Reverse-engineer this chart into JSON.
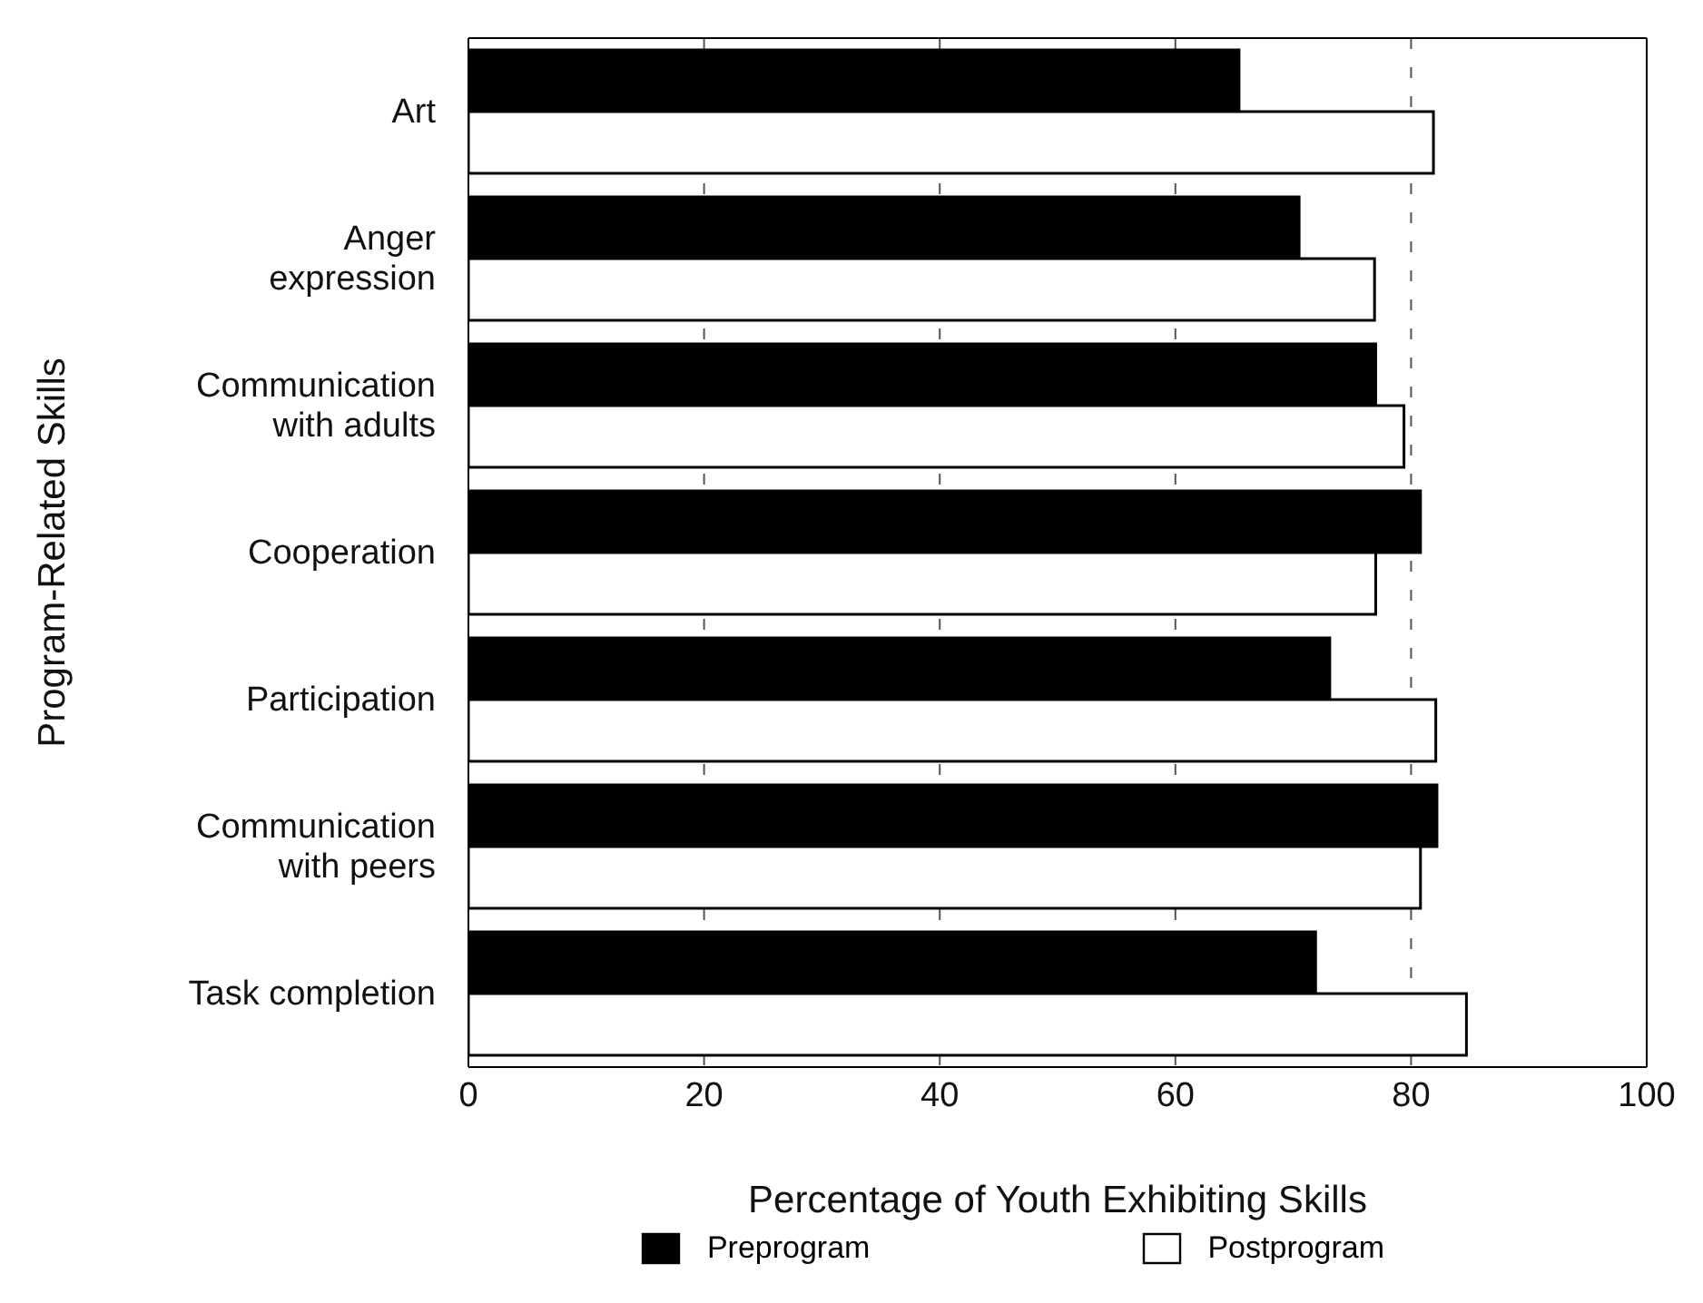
{
  "chart_data": {
    "type": "bar",
    "orientation": "horizontal",
    "xlabel": "Percentage of Youth Exhibiting Skills",
    "ylabel": "Program-Related Skills",
    "categories": [
      "Art",
      "Anger expression",
      "Communication with adults",
      "Cooperation",
      "Participation",
      "Communication with peers",
      "Task completion"
    ],
    "series": [
      {
        "name": "Preprogram",
        "color": "#000000",
        "values": [
          65.4,
          70.5,
          77,
          80.8,
          73.1,
          82.2,
          71.9
        ]
      },
      {
        "name": "Postprogram",
        "color": "#ffffff",
        "values": [
          81.9,
          76.9,
          79.4,
          77,
          82.1,
          80.8,
          84.7
        ]
      }
    ],
    "xlim": [
      0,
      100
    ],
    "xticks": [
      0,
      20,
      40,
      60,
      80,
      100
    ],
    "grid": "x",
    "legend": "bottom"
  }
}
